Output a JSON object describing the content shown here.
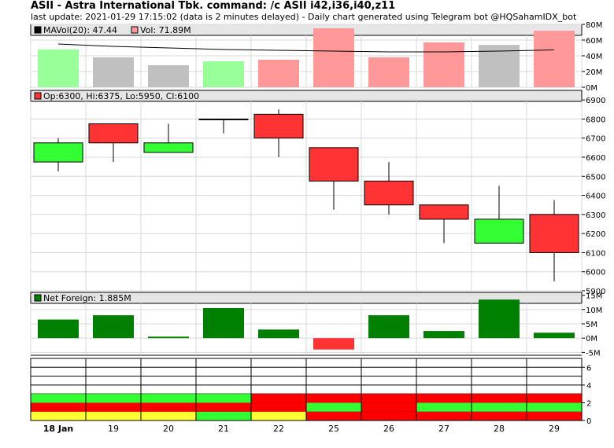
{
  "header": {
    "title": "ASII - Astra International Tbk. command: /c ASII i42,i36,i40,z11",
    "subtitle": "last update: 2021-01-29 17:15:02 (data is 2 minutes delayed) - Daily chart generated using Telegram bot @HQSahamIDX_bot"
  },
  "chart_data": {
    "type": "candlestick",
    "categories": [
      "18 Jan",
      "19",
      "20",
      "21",
      "22",
      "25",
      "26",
      "27",
      "28",
      "29"
    ],
    "x_bold_category": "18 Jan",
    "volume": {
      "legend_ma": "MAVol(20): 47.44",
      "legend_vol": "Vol: 71.89M",
      "values": [
        48,
        38,
        28,
        33,
        35,
        75,
        38,
        57,
        54,
        71.89
      ],
      "colors": [
        "#99ff99",
        "#c0c0c0",
        "#c0c0c0",
        "#99ff99",
        "#ff9999",
        "#ff9999",
        "#ff9999",
        "#ff9999",
        "#c0c0c0",
        "#ff9999"
      ],
      "ma20": [
        55,
        52,
        50,
        48,
        47,
        46,
        45,
        45,
        46,
        47.44
      ],
      "ylim": [
        0,
        80
      ],
      "ticks": [
        0,
        20,
        40,
        60,
        80
      ],
      "tick_labels": [
        "0M",
        "20M",
        "40M",
        "60M",
        "80M"
      ]
    },
    "price": {
      "legend": "Op:6300, Hi:6375, Lo:5950, Cl:6100",
      "ohlc": [
        [
          6575,
          6700,
          6525,
          6675
        ],
        [
          6675,
          6775,
          6575,
          6775
        ],
        [
          6675,
          6775,
          6625,
          6625
        ],
        [
          6800,
          6800,
          6725,
          6800
        ],
        [
          6825,
          6850,
          6600,
          6700
        ],
        [
          6650,
          6650,
          6325,
          6475
        ],
        [
          6475,
          6575,
          6300,
          6350
        ],
        [
          6350,
          6350,
          6150,
          6275
        ],
        [
          6150,
          6450,
          6150,
          6275
        ],
        [
          6300,
          6375,
          5950,
          6100
        ]
      ],
      "colors": [
        "#33ff33",
        "#ff3333",
        "#33ff33",
        "#33ff33",
        "#ff3333",
        "#ff3333",
        "#ff3333",
        "#ff3333",
        "#33ff33",
        "#ff3333"
      ],
      "ylim": [
        5900,
        6950
      ],
      "ticks": [
        5900,
        6000,
        6100,
        6200,
        6300,
        6400,
        6500,
        6600,
        6700,
        6800,
        6900
      ]
    },
    "net_foreign": {
      "legend": "Net Foreign: 1.885M",
      "values": [
        6.5,
        8,
        0.5,
        10.5,
        3,
        -4,
        8,
        2.5,
        13.5,
        1.885
      ],
      "colors": [
        "#008000",
        "#008000",
        "#008000",
        "#008000",
        "#008000",
        "#ff3333",
        "#008000",
        "#008000",
        "#008000",
        "#008000"
      ],
      "ylim": [
        -6,
        16
      ],
      "ticks": [
        -5,
        0,
        5,
        10,
        15
      ],
      "tick_labels": [
        "-5M",
        "0M",
        "5M",
        "10M",
        "15M"
      ]
    },
    "signal_panel": {
      "ylim": [
        0,
        7
      ],
      "ticks": [
        0,
        2,
        4,
        6
      ],
      "rows": [
        [
          "#ffff33",
          "#ffff33",
          "#ffff33",
          "#33ff33",
          "#ffff33",
          "#ff0000",
          "#ff0000",
          "#ff0000",
          "#ff0000",
          "#ff0000"
        ],
        [
          "#ff0000",
          "#ff0000",
          "#ff0000",
          "#ff0000",
          "#ff0000",
          "#33ff33",
          "#ff0000",
          "#33ff33",
          "#33ff33",
          "#33ff33"
        ],
        [
          "#33ff33",
          "#33ff33",
          "#33ff33",
          "#33ff33",
          "#ff0000",
          "#ff0000",
          "#ff0000",
          "#ff0000",
          "#ff0000",
          "#ff0000"
        ]
      ]
    }
  }
}
